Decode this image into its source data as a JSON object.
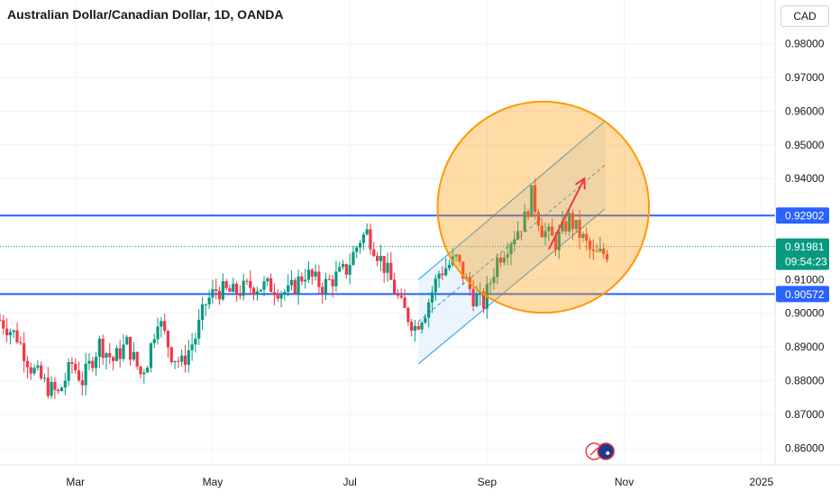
{
  "header": {
    "title": "Australian Dollar/Canadian Dollar, 1D, OANDA",
    "currency": "CAD"
  },
  "chart_data": {
    "type": "candlestick",
    "instrument": "Australian Dollar/Canadian Dollar",
    "timeframe": "1D",
    "source": "OANDA",
    "y_unit": "CAD",
    "ylim": [
      0.855,
      0.993
    ],
    "x_ticks": [
      {
        "label": "Mar",
        "month": 2.0
      },
      {
        "label": "May",
        "month": 4.0
      },
      {
        "label": "Jul",
        "month": 6.0
      },
      {
        "label": "Sep",
        "month": 8.0
      },
      {
        "label": "Nov",
        "month": 10.0
      },
      {
        "label": "2025",
        "month": 12.0
      }
    ],
    "xlim_months": [
      0.9,
      12.2
    ],
    "y_ticks": [
      0.98,
      0.97,
      0.96,
      0.95,
      0.94,
      0.91,
      0.9,
      0.89,
      0.88,
      0.87,
      0.86
    ],
    "y_tick_labels": [
      "0.98000",
      "0.97000",
      "0.96000",
      "0.95000",
      "0.94000",
      "0.91000",
      "0.90000",
      "0.89000",
      "0.88000",
      "0.87000",
      "0.86000"
    ],
    "grid": true,
    "close_path": [
      [
        0.9,
        0.898
      ],
      [
        1.15,
        0.893
      ],
      [
        1.35,
        0.884
      ],
      [
        1.6,
        0.878
      ],
      [
        1.75,
        0.876
      ],
      [
        1.95,
        0.885
      ],
      [
        2.1,
        0.88
      ],
      [
        2.35,
        0.891
      ],
      [
        2.55,
        0.886
      ],
      [
        2.75,
        0.891
      ],
      [
        2.95,
        0.882
      ],
      [
        3.05,
        0.886
      ],
      [
        3.2,
        0.899
      ],
      [
        3.4,
        0.888
      ],
      [
        3.55,
        0.885
      ],
      [
        3.75,
        0.893
      ],
      [
        3.9,
        0.903
      ],
      [
        4.05,
        0.907
      ],
      [
        4.3,
        0.906
      ],
      [
        4.55,
        0.908
      ],
      [
        4.85,
        0.908
      ],
      [
        5.1,
        0.906
      ],
      [
        5.35,
        0.912
      ],
      [
        5.6,
        0.908
      ],
      [
        5.95,
        0.913
      ],
      [
        6.15,
        0.922
      ],
      [
        6.25,
        0.924
      ],
      [
        6.4,
        0.918
      ],
      [
        6.55,
        0.912
      ],
      [
        6.75,
        0.902
      ],
      [
        6.95,
        0.896
      ],
      [
        7.1,
        0.901
      ],
      [
        7.3,
        0.912
      ],
      [
        7.55,
        0.916
      ],
      [
        7.8,
        0.905
      ],
      [
        7.95,
        0.903
      ],
      [
        8.15,
        0.916
      ],
      [
        8.35,
        0.922
      ],
      [
        8.55,
        0.928
      ],
      [
        8.65,
        0.935
      ],
      [
        8.8,
        0.925
      ],
      [
        9.0,
        0.921
      ],
      [
        9.2,
        0.928
      ],
      [
        9.4,
        0.922
      ],
      [
        9.55,
        0.917
      ],
      [
        9.75,
        0.918
      ]
    ],
    "levels": [
      {
        "label": "0.92902",
        "value": 0.92902,
        "color": "#2962ff"
      },
      {
        "label": "0.90572",
        "value": 0.90572,
        "color": "#2962ff"
      }
    ],
    "last_price": {
      "label": "0.91981",
      "value": 0.91981,
      "countdown": "09:54:23",
      "color": "#089981"
    },
    "channel": {
      "start_month": 7.0,
      "end_month": 9.72,
      "lower_start": 0.885,
      "lower_end": 0.931,
      "upper_start": 0.91,
      "upper_end": 0.957,
      "mid_start": 0.8975,
      "mid_end": 0.944,
      "fill": "#e3f2fd",
      "stroke": "#2196f3"
    },
    "arrow": {
      "from_month": 8.9,
      "from_value": 0.919,
      "to_month": 9.42,
      "to_value": 0.94,
      "color": "#f23645"
    },
    "highlight_circle": {
      "month": 8.82,
      "value": 0.9315,
      "radius_value": 0.0095,
      "color": "#ff9800"
    },
    "colors": {
      "up": "#089981",
      "down": "#f23645",
      "grid": "#f0f3fa",
      "axis_text": "#131722"
    }
  }
}
